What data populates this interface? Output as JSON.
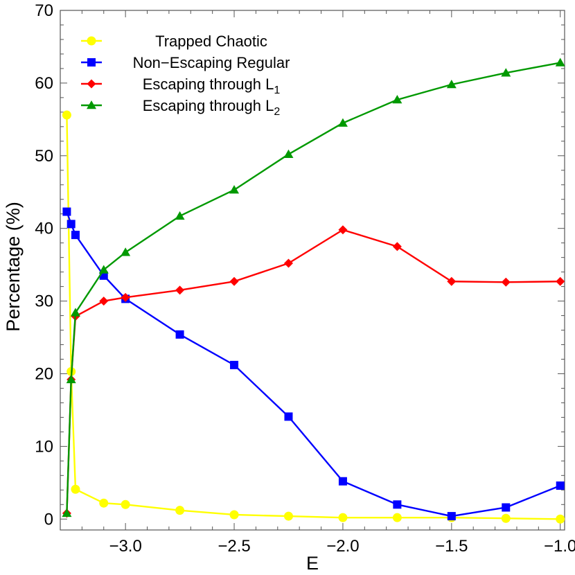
{
  "chart_data": {
    "type": "line",
    "xlabel": "E",
    "ylabel": "Percentage (%)",
    "xlim": [
      -3.3,
      -0.98
    ],
    "ylim": [
      -1.5,
      70
    ],
    "xticks": [
      -3.0,
      -2.5,
      -2.0,
      -1.5,
      -1.0
    ],
    "xtick_labels": [
      "−3.0",
      "−2.5",
      "−2.0",
      "−1.5",
      "−1.0"
    ],
    "yticks": [
      0,
      10,
      20,
      30,
      40,
      50,
      60,
      70
    ],
    "ytick_labels": [
      "0",
      "10",
      "20",
      "30",
      "40",
      "50",
      "60",
      "70"
    ],
    "grid": false,
    "legend_position": "top-left",
    "x": [
      -3.27,
      -3.25,
      -3.23,
      -3.1,
      -3.0,
      -2.75,
      -2.5,
      -2.25,
      -2.0,
      -1.75,
      -1.5,
      -1.25,
      -1.0
    ],
    "series": [
      {
        "name": "Trapped Chaotic",
        "name_main": "Trapped Chaotic",
        "name_sub": "",
        "color": "#ffff00",
        "marker": "circle",
        "values": [
          55.6,
          20.3,
          4.1,
          2.2,
          2.0,
          1.2,
          0.6,
          0.4,
          0.2,
          0.2,
          0.2,
          0.1,
          0.0
        ]
      },
      {
        "name": "Non−Escaping Regular",
        "name_main": "Non−Escaping Regular",
        "name_sub": "",
        "color": "#0000ff",
        "marker": "square",
        "values": [
          42.3,
          40.6,
          39.1,
          33.5,
          30.3,
          25.4,
          21.2,
          14.1,
          5.2,
          2.0,
          0.4,
          1.6,
          4.6
        ]
      },
      {
        "name": "Escaping through L1",
        "name_main": "Escaping through L",
        "name_sub": "1",
        "color": "#ff0000",
        "marker": "diamond",
        "values": [
          0.8,
          19.2,
          27.9,
          30.0,
          30.5,
          31.5,
          32.7,
          35.2,
          39.8,
          37.5,
          32.7,
          32.6,
          32.7
        ]
      },
      {
        "name": "Escaping through L2",
        "name_main": "Escaping through L",
        "name_sub": "2",
        "color": "#009900",
        "marker": "triangle",
        "values": [
          0.8,
          19.2,
          28.4,
          34.3,
          36.7,
          41.7,
          45.3,
          50.2,
          54.5,
          57.7,
          59.8,
          61.4,
          62.8
        ]
      }
    ]
  }
}
